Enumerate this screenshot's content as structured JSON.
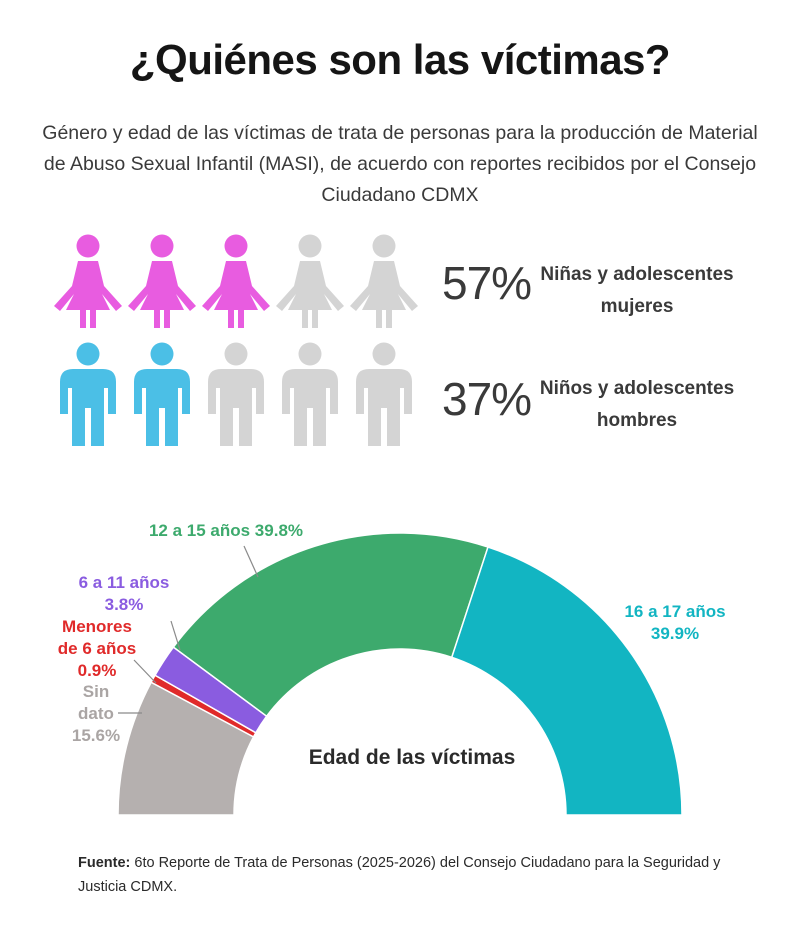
{
  "title": "¿Quiénes son las víctimas?",
  "subtitle": "Género y edad de las víctimas de trata de personas para la producción de Material de Abuso Sexual Infantil (MASI), de acuerdo con reportes recibidos por el Consejo Ciudadano CDMX",
  "gender": {
    "girls": {
      "percent": "57%",
      "label": "Niñas y adolescentes mujeres",
      "filled_icons": 3,
      "total_icons": 5,
      "color": "#e85ce0",
      "icon": "girl-icon"
    },
    "boys": {
      "percent": "37%",
      "label": "Niños y adolescentes hombres",
      "filled_icons": 2,
      "total_icons": 5,
      "color": "#4bbfe6",
      "icon": "boy-icon"
    },
    "inactive_color": "#d4d4d4"
  },
  "chart_data": {
    "type": "pie",
    "subtype": "semicircle-donut",
    "title": "Edad de las víctimas",
    "slices": [
      {
        "label_line1": "Sin",
        "label_line2": "dato",
        "value": 15.6,
        "value_text": "15.6%",
        "color": "#b5b0af"
      },
      {
        "label_line1": "Menores",
        "label_line2": "de 6 años",
        "value": 0.9,
        "value_text": "0.9%",
        "color": "#e02a2a"
      },
      {
        "label_line1": "6 a 11 años",
        "label_line2": "",
        "value": 3.8,
        "value_text": "3.8%",
        "color": "#8a5ce0"
      },
      {
        "label_line1": "12 a 15 años",
        "label_line2": "",
        "value": 39.8,
        "value_text": "39.8%",
        "color": "#3daa6d"
      },
      {
        "label_line1": "16 a 17 años",
        "label_line2": "",
        "value": 39.9,
        "value_text": "39.9%",
        "color": "#12b5c2"
      }
    ]
  },
  "source": {
    "prefix": "Fuente:",
    "text": "6to Reporte de Trata de Personas (2025-2026) del Consejo Ciudadano para la Seguridad y Justicia CDMX."
  }
}
